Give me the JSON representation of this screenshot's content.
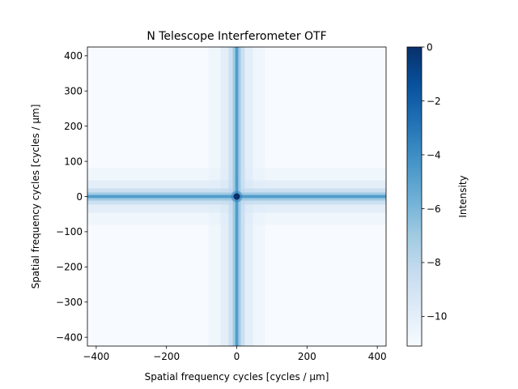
{
  "chart_data": {
    "type": "heatmap",
    "title": "N Telescope Interferometer OTF",
    "xlabel": "Spatial frequency cycles [cycles / μm]",
    "ylabel": "Spatial frequency cycles [cycles / μm]",
    "xlim": [
      -425,
      425
    ],
    "ylim": [
      -425,
      425
    ],
    "x_ticks": [
      -400,
      -200,
      0,
      200,
      400
    ],
    "y_ticks": [
      -400,
      -300,
      -200,
      -100,
      0,
      100,
      200,
      300,
      400
    ],
    "x_tick_labels": [
      "−400",
      "−200",
      "0",
      "200",
      "400"
    ],
    "y_tick_labels": [
      "−400",
      "−300",
      "−200",
      "−100",
      "0",
      "100",
      "200",
      "300",
      "400"
    ],
    "colormap": "Blues",
    "color_stops": [
      "#f7fbff",
      "#deebf7",
      "#c6dbef",
      "#9ecae1",
      "#6baed6",
      "#4292c6",
      "#2171b5",
      "#08519c",
      "#08306b"
    ],
    "colorbar": {
      "label": "Intensity",
      "range": [
        -11.1,
        0
      ],
      "ticks": [
        0,
        -2,
        -4,
        -6,
        -8,
        -10
      ],
      "tick_labels": [
        "0",
        "−2",
        "−4",
        "−6",
        "−8",
        "−10"
      ]
    },
    "features": {
      "peak": {
        "x": 0,
        "y": 0,
        "value": 0
      },
      "cross_arms": [
        {
          "axis": "horizontal",
          "y": 0,
          "value_near": -4.5
        },
        {
          "axis": "vertical",
          "x": 0,
          "value_near": -4.5
        }
      ],
      "background_value": -11
    },
    "grid": false
  }
}
